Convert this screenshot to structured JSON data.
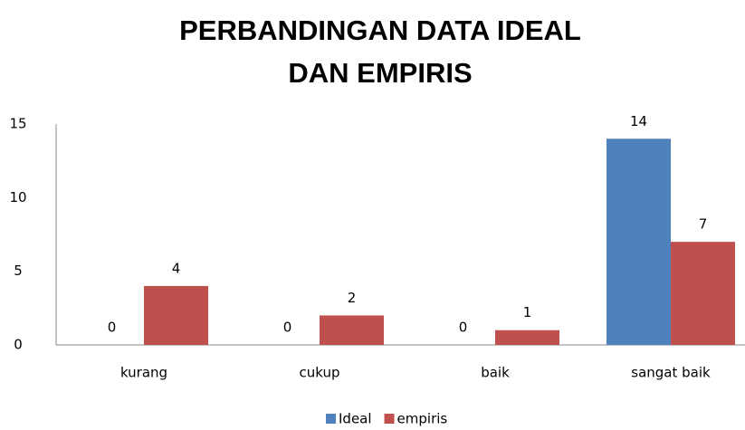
{
  "chart_data": {
    "type": "bar",
    "title": [
      "PERBANDINGAN DATA IDEAL",
      "DAN EMPIRIS"
    ],
    "categories": [
      "kurang",
      "cukup",
      "baik",
      "sangat baik"
    ],
    "series": [
      {
        "name": "Ideal",
        "color": "#4f81bd",
        "values": [
          0,
          0,
          0,
          14
        ]
      },
      {
        "name": "empiris",
        "color": "#c0504d",
        "values": [
          4,
          2,
          1,
          7
        ]
      }
    ],
    "ylim": [
      0,
      15
    ],
    "yticks": [
      0,
      5,
      10,
      15
    ],
    "grid": false,
    "legend": "bottom"
  }
}
